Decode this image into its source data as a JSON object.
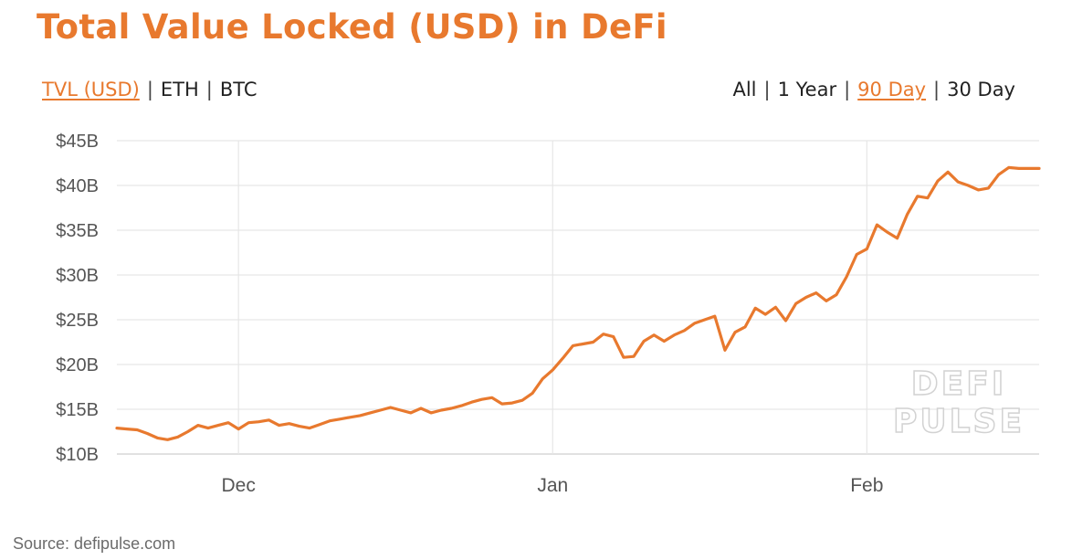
{
  "title": "Total Value Locked (USD) in DeFi",
  "metric_toggle": {
    "options": [
      "TVL (USD)",
      "ETH",
      "BTC"
    ],
    "active": "TVL (USD)"
  },
  "range_toggle": {
    "options": [
      "All",
      "1 Year",
      "90 Day",
      "30 Day"
    ],
    "active": "90 Day"
  },
  "watermark": [
    "DEFI",
    "PULSE"
  ],
  "source": "Source: defipulse.com",
  "colors": {
    "accent": "#e8792e",
    "grid": "#e6e6e6",
    "axis_text": "#555555"
  },
  "chart_data": {
    "type": "line",
    "title": "Total Value Locked (USD) in DeFi",
    "xlabel": "",
    "ylabel": "",
    "ylim": [
      10,
      45
    ],
    "y_unit": "B USD",
    "yticks": [
      10,
      15,
      20,
      25,
      30,
      35,
      40,
      45
    ],
    "ytick_labels": [
      "$10B",
      "$15B",
      "$20B",
      "$25B",
      "$30B",
      "$35B",
      "$40B",
      "$45B"
    ],
    "x_tick_labels": [
      {
        "label": "Dec",
        "date": "2020-12-01"
      },
      {
        "label": "Jan",
        "date": "2021-01-01"
      },
      {
        "label": "Feb",
        "date": "2021-02-01"
      }
    ],
    "grid": true,
    "legend": "none",
    "series": [
      {
        "x": [
          "2020-11-19",
          "2020-11-20",
          "2020-11-21",
          "2020-11-22",
          "2020-11-23",
          "2020-11-24",
          "2020-11-25",
          "2020-11-26",
          "2020-11-27",
          "2020-11-28",
          "2020-11-29",
          "2020-11-30",
          "2020-12-01",
          "2020-12-02",
          "2020-12-03",
          "2020-12-04",
          "2020-12-05",
          "2020-12-06",
          "2020-12-07",
          "2020-12-08",
          "2020-12-09",
          "2020-12-10",
          "2020-12-11",
          "2020-12-12",
          "2020-12-13",
          "2020-12-14",
          "2020-12-15",
          "2020-12-16",
          "2020-12-17",
          "2020-12-18",
          "2020-12-19",
          "2020-12-20",
          "2020-12-21",
          "2020-12-22",
          "2020-12-23",
          "2020-12-24",
          "2020-12-25",
          "2020-12-26",
          "2020-12-27",
          "2020-12-28",
          "2020-12-29",
          "2020-12-30",
          "2020-12-31",
          "2021-01-01",
          "2021-01-02",
          "2021-01-03",
          "2021-01-04",
          "2021-01-05",
          "2021-01-06",
          "2021-01-07",
          "2021-01-08",
          "2021-01-09",
          "2021-01-10",
          "2021-01-11",
          "2021-01-12",
          "2021-01-13",
          "2021-01-14",
          "2021-01-15",
          "2021-01-16",
          "2021-01-17",
          "2021-01-18",
          "2021-01-19",
          "2021-01-20",
          "2021-01-21",
          "2021-01-22",
          "2021-01-23",
          "2021-01-24",
          "2021-01-25",
          "2021-01-26",
          "2021-01-27",
          "2021-01-28",
          "2021-01-29",
          "2021-01-30",
          "2021-01-31",
          "2021-02-01",
          "2021-02-02",
          "2021-02-03",
          "2021-02-04",
          "2021-02-05",
          "2021-02-06",
          "2021-02-07",
          "2021-02-08",
          "2021-02-09",
          "2021-02-10",
          "2021-02-11",
          "2021-02-12",
          "2021-02-13",
          "2021-02-14",
          "2021-02-15",
          "2021-02-16",
          "2021-02-17",
          "2021-02-18"
        ],
        "y": [
          12.9,
          12.8,
          12.7,
          12.3,
          11.8,
          11.6,
          11.9,
          12.5,
          13.2,
          12.9,
          13.2,
          13.5,
          12.8,
          13.5,
          13.6,
          13.8,
          13.2,
          13.4,
          13.1,
          12.9,
          13.3,
          13.7,
          13.9,
          14.1,
          14.3,
          14.6,
          14.9,
          15.2,
          14.9,
          14.6,
          15.1,
          14.6,
          14.9,
          15.1,
          15.4,
          15.8,
          16.1,
          16.3,
          15.6,
          15.7,
          16.0,
          16.8,
          18.4,
          19.4,
          20.7,
          22.1,
          22.3,
          22.5,
          23.4,
          23.1,
          20.8,
          20.9,
          22.6,
          23.3,
          22.6,
          23.3,
          23.8,
          24.6,
          25.0,
          25.4,
          21.6,
          23.6,
          24.2,
          26.3,
          25.6,
          26.4,
          24.9,
          26.8,
          27.5,
          28.0,
          27.1,
          27.8,
          29.8,
          32.3,
          32.9,
          35.6,
          34.8,
          34.1,
          36.8,
          38.8,
          38.6,
          40.5,
          41.5,
          40.4,
          40.0,
          39.5,
          39.7,
          41.2,
          42.0,
          41.9,
          41.9,
          41.9
        ]
      }
    ]
  }
}
